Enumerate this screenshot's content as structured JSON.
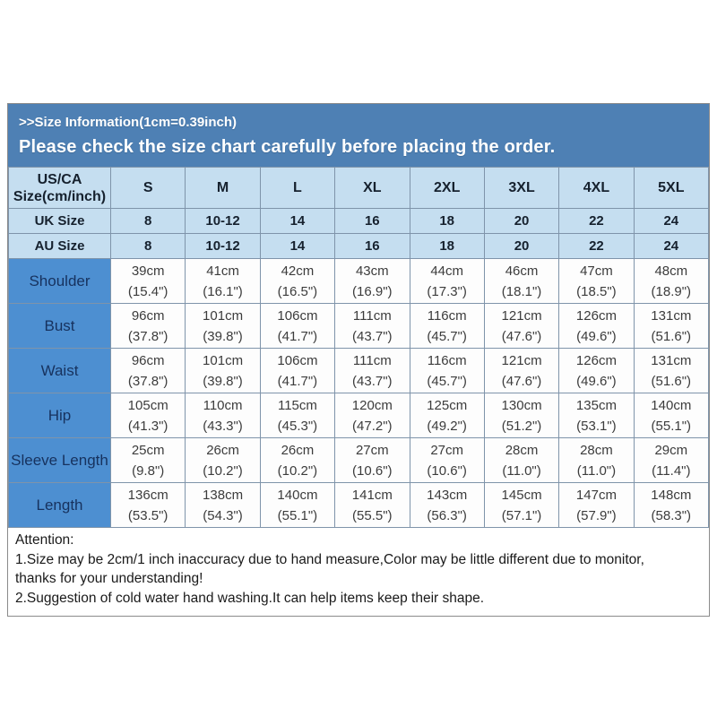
{
  "banner": {
    "line1": ">>Size Information(1cm=0.39inch)",
    "line2": "Please check the size chart carefully before placing the order."
  },
  "table": {
    "corner": {
      "line1": "US/CA",
      "line2": "Size(cm/inch)"
    },
    "size_columns": [
      "S",
      "M",
      "L",
      "XL",
      "2XL",
      "3XL",
      "4XL",
      "5XL"
    ],
    "region_rows": [
      {
        "label": "UK Size",
        "values": [
          "8",
          "10-12",
          "14",
          "16",
          "18",
          "20",
          "22",
          "24"
        ]
      },
      {
        "label": "AU Size",
        "values": [
          "8",
          "10-12",
          "14",
          "16",
          "18",
          "20",
          "22",
          "24"
        ]
      }
    ],
    "measurement_rows": [
      {
        "label": "Shoulder",
        "cm": [
          "39cm",
          "41cm",
          "42cm",
          "43cm",
          "44cm",
          "46cm",
          "47cm",
          "48cm"
        ],
        "inch": [
          "(15.4\")",
          "(16.1\")",
          "(16.5\")",
          "(16.9\")",
          "(17.3\")",
          "(18.1\")",
          "(18.5\")",
          "(18.9\")"
        ]
      },
      {
        "label": "Bust",
        "cm": [
          "96cm",
          "101cm",
          "106cm",
          "111cm",
          "116cm",
          "121cm",
          "126cm",
          "131cm"
        ],
        "inch": [
          "(37.8\")",
          "(39.8\")",
          "(41.7\")",
          "(43.7\")",
          "(45.7\")",
          "(47.6\")",
          "(49.6\")",
          "(51.6\")"
        ]
      },
      {
        "label": "Waist",
        "cm": [
          "96cm",
          "101cm",
          "106cm",
          "111cm",
          "116cm",
          "121cm",
          "126cm",
          "131cm"
        ],
        "inch": [
          "(37.8\")",
          "(39.8\")",
          "(41.7\")",
          "(43.7\")",
          "(45.7\")",
          "(47.6\")",
          "(49.6\")",
          "(51.6\")"
        ]
      },
      {
        "label": "Hip",
        "cm": [
          "105cm",
          "110cm",
          "115cm",
          "120cm",
          "125cm",
          "130cm",
          "135cm",
          "140cm"
        ],
        "inch": [
          "(41.3\")",
          "(43.3\")",
          "(45.3\")",
          "(47.2\")",
          "(49.2\")",
          "(51.2\")",
          "(53.1\")",
          "(55.1\")"
        ]
      },
      {
        "label": "Sleeve Length",
        "cm": [
          "25cm",
          "26cm",
          "26cm",
          "27cm",
          "27cm",
          "28cm",
          "28cm",
          "29cm"
        ],
        "inch": [
          "(9.8\")",
          "(10.2\")",
          "(10.2\")",
          "(10.6\")",
          "(10.6\")",
          "(11.0\")",
          "(11.0\")",
          "(11.4\")"
        ]
      },
      {
        "label": "Length",
        "cm": [
          "136cm",
          "138cm",
          "140cm",
          "141cm",
          "143cm",
          "145cm",
          "147cm",
          "148cm"
        ],
        "inch": [
          "(53.5\")",
          "(54.3\")",
          "(55.1\")",
          "(55.5\")",
          "(56.3\")",
          "(57.1\")",
          "(57.9\")",
          "(58.3\")"
        ]
      }
    ]
  },
  "attention": {
    "lines": [
      "Attention:",
      "1.Size may be 2cm/1 inch inaccuracy due to hand measure,Color may be little different due to monitor,",
      "thanks for your understanding!",
      "2.Suggestion of cold water hand washing.It can help items keep their shape."
    ]
  },
  "colors": {
    "banner_blue": "#4e80b4",
    "header_light_blue": "#c5def0",
    "label_blue": "#4d8fd1",
    "navy_text": "#17325e",
    "banner_text": "#ffffff"
  }
}
